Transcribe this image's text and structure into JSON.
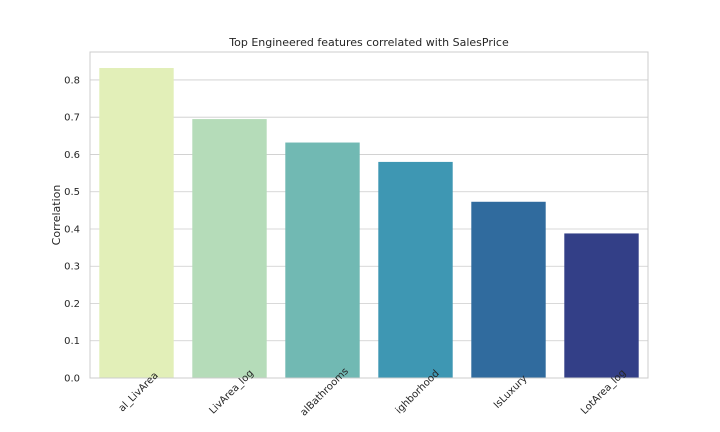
{
  "chart_data": {
    "type": "bar",
    "title": "Top Engineered features correlated with SalesPrice",
    "xlabel": "",
    "ylabel": "Correlation",
    "categories": [
      "Total_LivArea",
      "TotalLivArea_log",
      "TotalBathrooms",
      "Neighborhood",
      "IsLuxury",
      "LotArea_log"
    ],
    "category_labels_visible": [
      "al_LivArea",
      "LivArea_log",
      "alBathrooms",
      "ighborhood",
      "IsLuxury",
      "LotArea_log"
    ],
    "values": [
      0.832,
      0.695,
      0.632,
      0.58,
      0.473,
      0.388
    ],
    "ylim": [
      0,
      0.875
    ],
    "yticks": [
      0.0,
      0.1,
      0.2,
      0.3,
      0.4,
      0.5,
      0.6,
      0.7,
      0.8
    ],
    "ytick_labels": [
      "0.0",
      "0.1",
      "0.2",
      "0.3",
      "0.4",
      "0.5",
      "0.6",
      "0.7",
      "0.8"
    ],
    "grid": true,
    "colors": [
      "#e2efb8",
      "#b5dcb9",
      "#71b9b3",
      "#3e97b3",
      "#306b9e",
      "#333f87"
    ]
  }
}
